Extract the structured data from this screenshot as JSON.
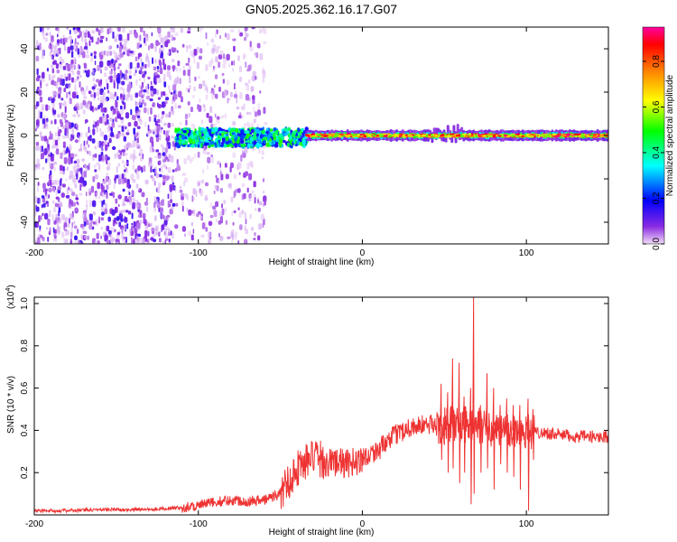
{
  "title": "GN05.2025.362.16.17.G07",
  "chart_data": [
    {
      "type": "heatmap",
      "name": "spectrogram",
      "xlabel": "Height of straight line (km)",
      "ylabel": "Frequency (Hz)",
      "xlim": [
        -200,
        150
      ],
      "ylim": [
        -50,
        50
      ],
      "xticks": [
        -200,
        -100,
        0,
        100
      ],
      "yticks": [
        -40,
        -20,
        0,
        20,
        40
      ],
      "colorbar": {
        "label": "Normalized spectral amplitude",
        "range": [
          0,
          0.95
        ],
        "ticks": [
          "0.0",
          "0.2",
          "0.4",
          "0.6",
          "0.8"
        ],
        "tick_values": [
          0,
          0.2,
          0.4,
          0.6,
          0.8
        ],
        "colormap": [
          "#f2dcf7",
          "#8a2be2",
          "#0000ff",
          "#00ffff",
          "#00ff00",
          "#ffff00",
          "#ff8000",
          "#ff0000",
          "#ff00a0"
        ]
      },
      "regions": [
        {
          "x_range": [
            -200,
            -115
          ],
          "description": "dense scattered noise",
          "amplitude_range": [
            0.02,
            0.2
          ]
        },
        {
          "x_range": [
            -115,
            -60
          ],
          "description": "sparse scattered noise",
          "amplitude_range": [
            0.01,
            0.12
          ]
        },
        {
          "x_range": [
            -115,
            -35
          ],
          "description": "carrier band near 0 Hz, width about 6 Hz",
          "amplitude_range": [
            0.2,
            0.5
          ]
        },
        {
          "x_range": [
            -35,
            150
          ],
          "description": "narrow carrier line near 0 Hz with red peaks",
          "amplitude_range": [
            0.5,
            0.95
          ]
        }
      ]
    },
    {
      "type": "line",
      "name": "snr",
      "xlabel": "Height of straight line (km)",
      "ylabel": "SNR (10 * v/v)",
      "ylabel_scale": "(x10",
      "ylabel_scale_exp": "4",
      "ylabel_scale_close": ")",
      "xlim": [
        -200,
        150
      ],
      "ylim": [
        0,
        1.03
      ],
      "xticks": [
        -200,
        -100,
        0,
        100
      ],
      "yticks": [
        0.2,
        0.4,
        0.6,
        0.8,
        1.0
      ],
      "ytick_labels": [
        "0.2",
        "0.4",
        "0.6",
        "0.8",
        "1.0"
      ],
      "color": "#ee3333",
      "series": [
        {
          "name": "SNR",
          "x": [
            -200,
            -180,
            -160,
            -140,
            -120,
            -110,
            -100,
            -90,
            -80,
            -70,
            -60,
            -50,
            -45,
            -40,
            -35,
            -30,
            -25,
            -20,
            -15,
            -10,
            -5,
            0,
            5,
            10,
            15,
            20,
            25,
            30,
            35,
            40,
            45,
            50,
            55,
            60,
            65,
            70,
            75,
            80,
            85,
            90,
            95,
            100,
            105,
            110,
            120,
            130,
            140,
            150
          ],
          "values": [
            0.02,
            0.02,
            0.025,
            0.025,
            0.03,
            0.035,
            0.045,
            0.06,
            0.07,
            0.065,
            0.07,
            0.1,
            0.16,
            0.22,
            0.25,
            0.27,
            0.26,
            0.25,
            0.25,
            0.24,
            0.25,
            0.27,
            0.29,
            0.31,
            0.34,
            0.38,
            0.4,
            0.42,
            0.42,
            0.43,
            0.42,
            0.42,
            0.43,
            0.43,
            0.42,
            0.42,
            0.42,
            0.41,
            0.4,
            0.4,
            0.4,
            0.4,
            0.39,
            0.39,
            0.38,
            0.37,
            0.37,
            0.37
          ]
        }
      ],
      "spikes": [
        {
          "x": 48,
          "high": 0.62,
          "low": 0.26
        },
        {
          "x": 52,
          "high": 0.58,
          "low": 0.2
        },
        {
          "x": 55,
          "high": 0.74,
          "low": 0.22
        },
        {
          "x": 59,
          "high": 0.72,
          "low": 0.15
        },
        {
          "x": 62,
          "high": 0.56,
          "low": 0.2
        },
        {
          "x": 66,
          "high": 0.6,
          "low": 0.05
        },
        {
          "x": 67.8,
          "high": 1.03,
          "low": 0.1
        },
        {
          "x": 72,
          "high": 0.52,
          "low": 0.2
        },
        {
          "x": 76,
          "high": 0.67,
          "low": 0.22
        },
        {
          "x": 80,
          "high": 0.6,
          "low": 0.12
        },
        {
          "x": 84,
          "high": 0.52,
          "low": 0.24
        },
        {
          "x": 88,
          "high": 0.55,
          "low": 0.2
        },
        {
          "x": 92,
          "high": 0.52,
          "low": 0.18
        },
        {
          "x": 96,
          "high": 0.52,
          "low": 0.12
        },
        {
          "x": 101,
          "high": 0.55,
          "low": 0.02
        },
        {
          "x": 104,
          "high": 0.5,
          "low": 0.26
        }
      ]
    }
  ]
}
